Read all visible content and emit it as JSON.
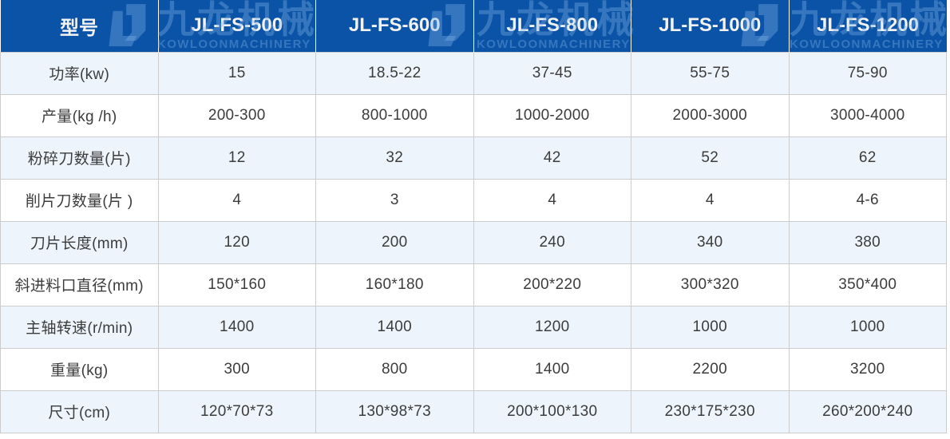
{
  "table": {
    "header": {
      "model_label": "型号",
      "models": [
        "JL-FS-500",
        "JL-FS-600",
        "JL-FS-800",
        "JL-FS-1000",
        "JL-FS-1200"
      ]
    },
    "rows": [
      {
        "label": "功率(kw)",
        "values": [
          "15",
          "18.5-22",
          "37-45",
          "55-75",
          "75-90"
        ]
      },
      {
        "label": "产量(kg /h)",
        "values": [
          "200-300",
          "800-1000",
          "1000-2000",
          "2000-3000",
          "3000-4000"
        ]
      },
      {
        "label": "粉碎刀数量(片)",
        "values": [
          "12",
          "32",
          "42",
          "52",
          "62"
        ]
      },
      {
        "label": "削片刀数量(片 )",
        "values": [
          "4",
          "3",
          "4",
          "4",
          "4-6"
        ]
      },
      {
        "label": "刀片长度(mm)",
        "values": [
          "120",
          "200",
          "240",
          "340",
          "380"
        ]
      },
      {
        "label": "斜进料口直径(mm)",
        "values": [
          "150*160",
          "160*180",
          "200*220",
          "300*320",
          "350*400"
        ]
      },
      {
        "label": "主轴转速(r/min)",
        "values": [
          "1400",
          "1400",
          "1200",
          "1000",
          "1000"
        ]
      },
      {
        "label": "重量(kg)",
        "values": [
          "300",
          "800",
          "1400",
          "2200",
          "3200"
        ]
      },
      {
        "label": "尺寸(cm)",
        "values": [
          "120*70*73",
          "130*98*73",
          "200*100*130",
          "230*175*230",
          "260*200*240"
        ]
      }
    ],
    "watermark": {
      "cn": "九龙机械",
      "en": "KOWLOONMACHINERY"
    },
    "colors": {
      "header_bg": "#0a53a6",
      "header_text": "#f2f2f2",
      "watermark_blue": "#2d6db7",
      "row_alt_bg": "#eef4fb",
      "row_bg": "#ffffff",
      "border": "#cccccc",
      "cell_text": "#3c3c3c"
    }
  }
}
